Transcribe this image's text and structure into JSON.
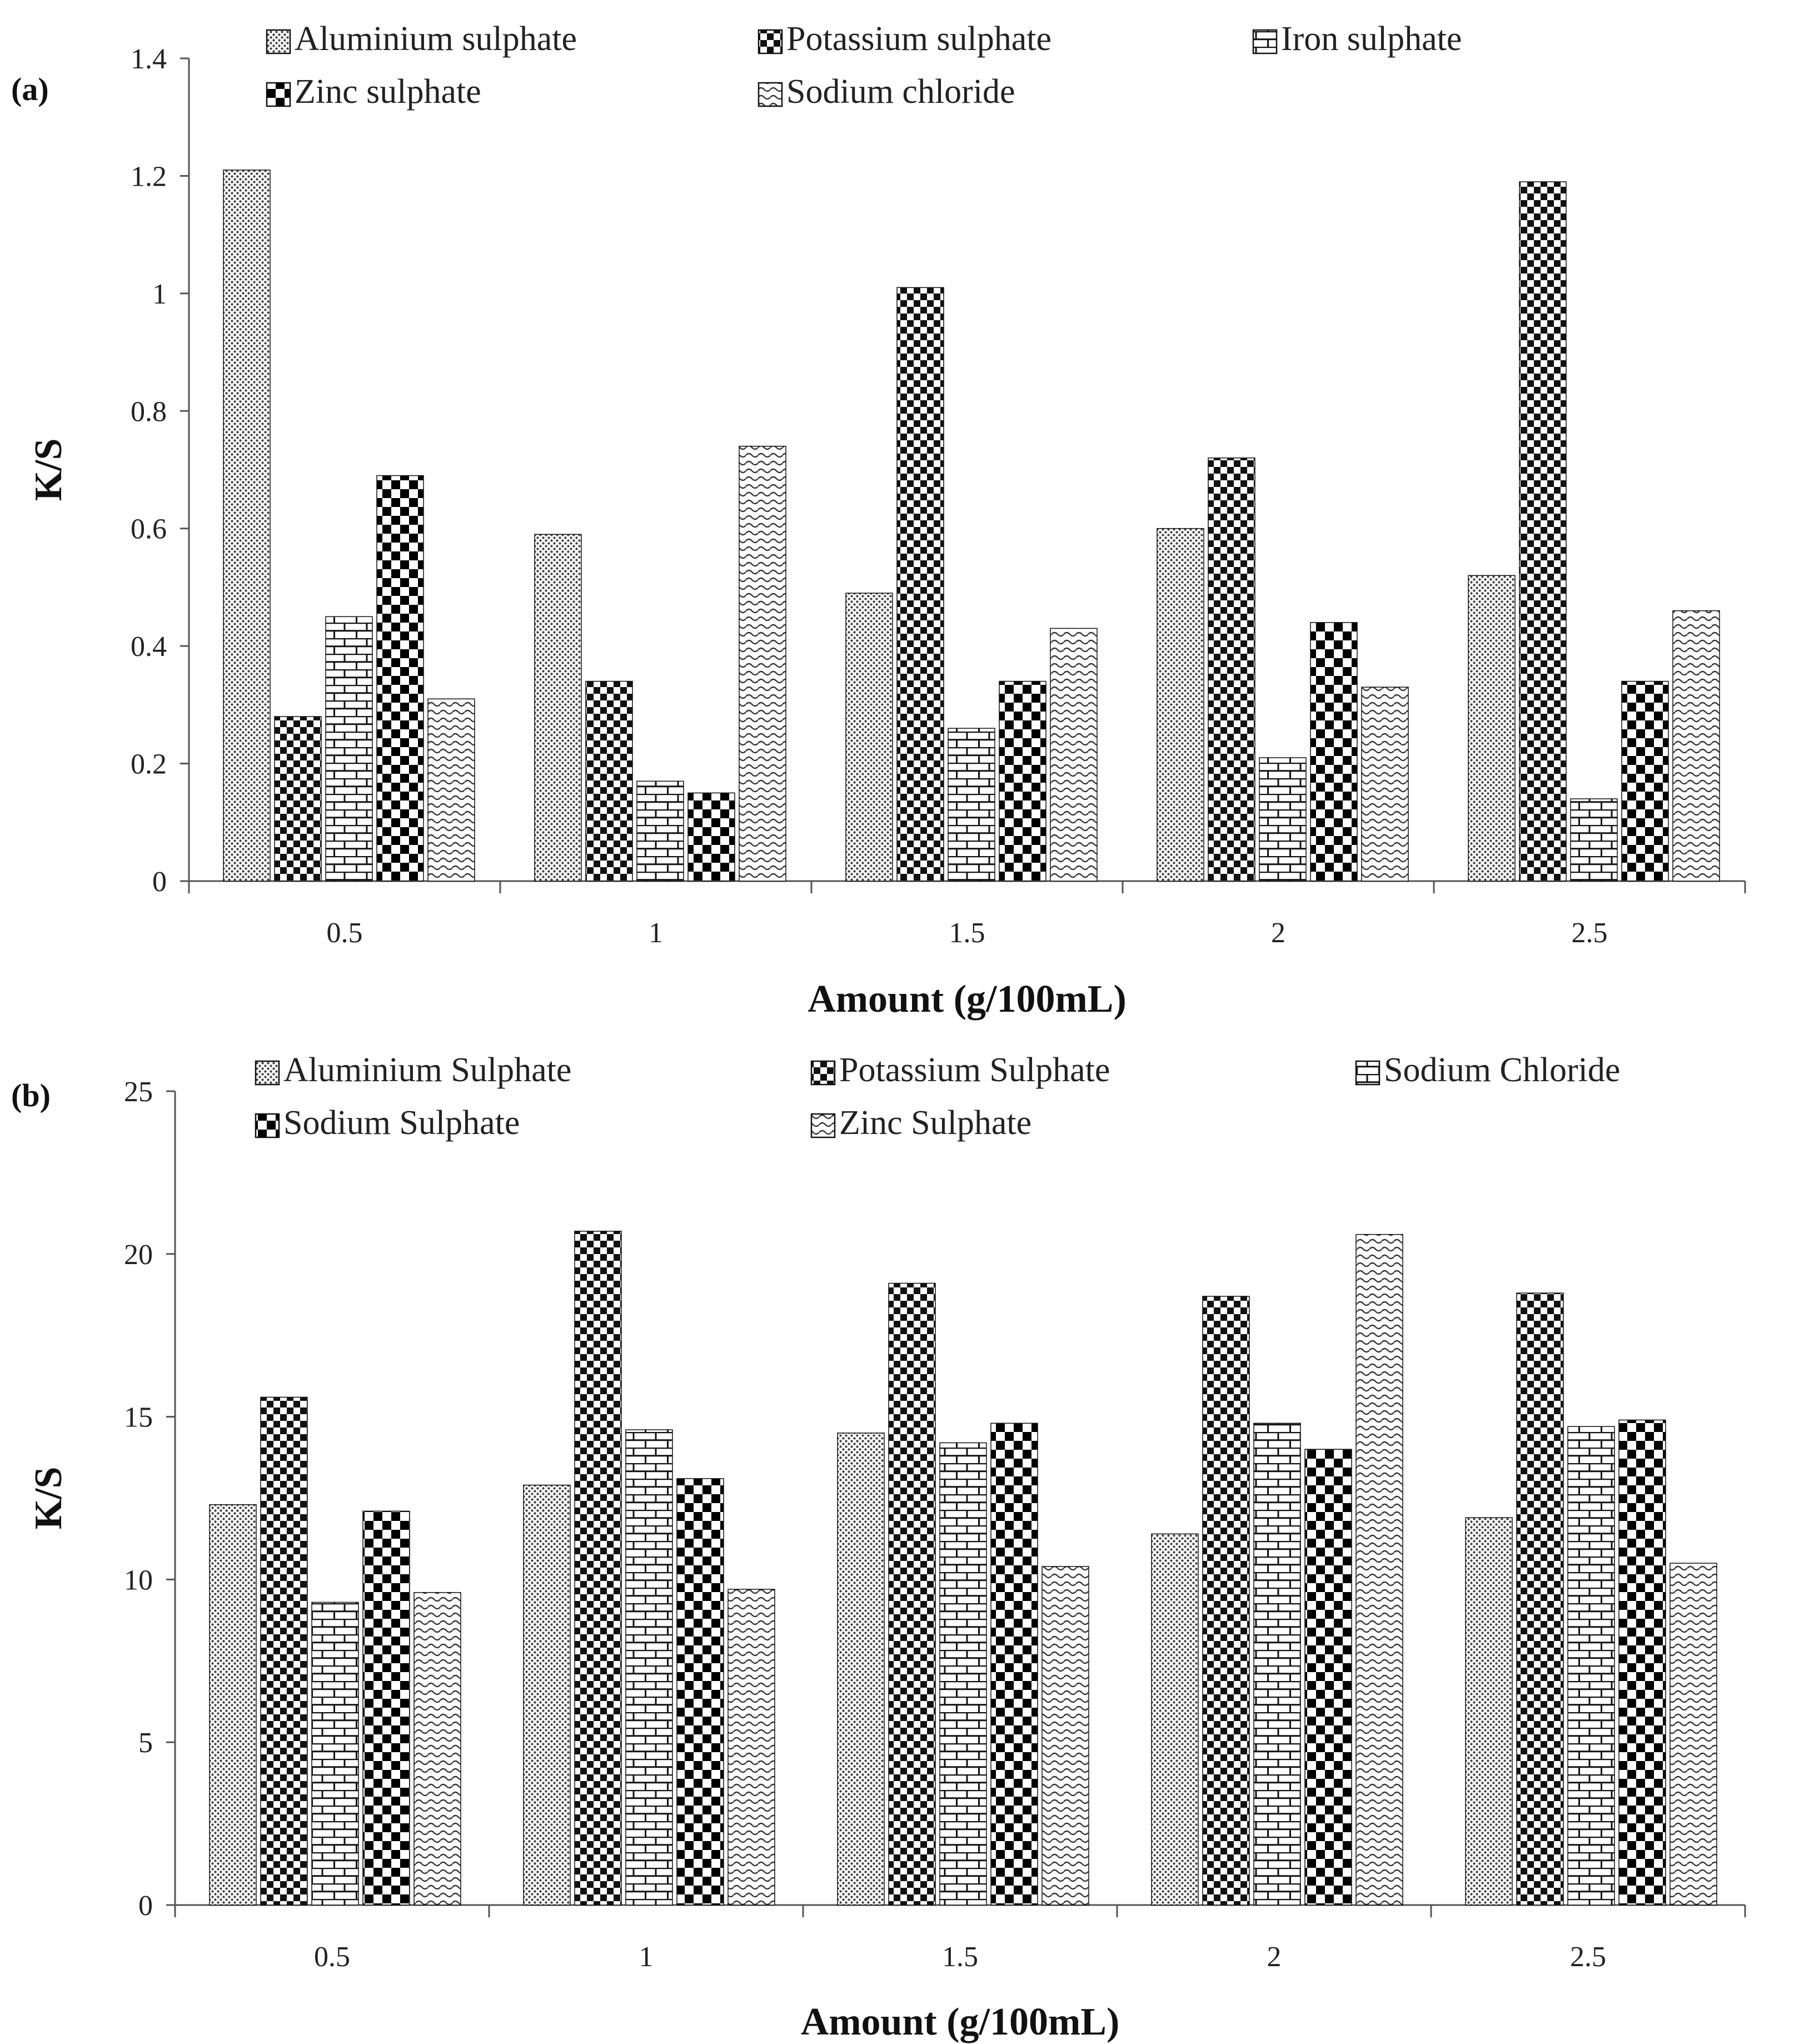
{
  "chart_data": [
    {
      "panel_label": "(a)",
      "type": "bar",
      "categories": [
        "0.5",
        "1",
        "1.5",
        "2",
        "2.5"
      ],
      "xlabel": "Amount (g/100mL)",
      "ylabel": "K/S",
      "ylim": [
        0,
        1.4
      ],
      "yticks": [
        "0",
        "0.2",
        "0.4",
        "0.6",
        "0.8",
        "1",
        "1.2",
        "1.4"
      ],
      "legend_position": "top",
      "series": [
        {
          "name": "Aluminium sulphate",
          "pattern": "dots",
          "values": [
            1.21,
            0.59,
            0.49,
            0.6,
            0.52
          ]
        },
        {
          "name": "Potassium sulphate",
          "pattern": "checker",
          "values": [
            0.28,
            0.34,
            1.01,
            0.72,
            1.19
          ]
        },
        {
          "name": "Iron sulphate",
          "pattern": "brick",
          "values": [
            0.45,
            0.17,
            0.26,
            0.21,
            0.14
          ]
        },
        {
          "name": "Zinc sulphate",
          "pattern": "bigchecker",
          "values": [
            0.69,
            0.15,
            0.34,
            0.44,
            0.34
          ]
        },
        {
          "name": "Sodium chloride",
          "pattern": "wave",
          "values": [
            0.31,
            0.74,
            0.43,
            0.33,
            0.46
          ]
        }
      ]
    },
    {
      "panel_label": "(b)",
      "type": "bar",
      "categories": [
        "0.5",
        "1",
        "1.5",
        "2",
        "2.5"
      ],
      "xlabel": "Amount (g/100mL)",
      "ylabel": "K/S",
      "ylim": [
        0,
        25
      ],
      "yticks": [
        "0",
        "5",
        "10",
        "15",
        "20",
        "25"
      ],
      "legend_position": "top",
      "series": [
        {
          "name": "Aluminium Sulphate",
          "pattern": "dots",
          "values": [
            12.3,
            12.9,
            14.5,
            11.4,
            11.9
          ]
        },
        {
          "name": "Potassium Sulphate",
          "pattern": "checker",
          "values": [
            15.6,
            20.7,
            19.1,
            18.7,
            18.8
          ]
        },
        {
          "name": "Sodium Chloride",
          "pattern": "brick",
          "values": [
            9.3,
            14.6,
            14.2,
            14.8,
            14.7
          ]
        },
        {
          "name": "Sodium Sulphate",
          "pattern": "bigchecker",
          "values": [
            12.1,
            13.1,
            14.8,
            14.0,
            14.9
          ]
        },
        {
          "name": "Zinc Sulphate",
          "pattern": "wave",
          "values": [
            9.6,
            9.7,
            10.4,
            20.6,
            10.5
          ]
        }
      ]
    }
  ]
}
